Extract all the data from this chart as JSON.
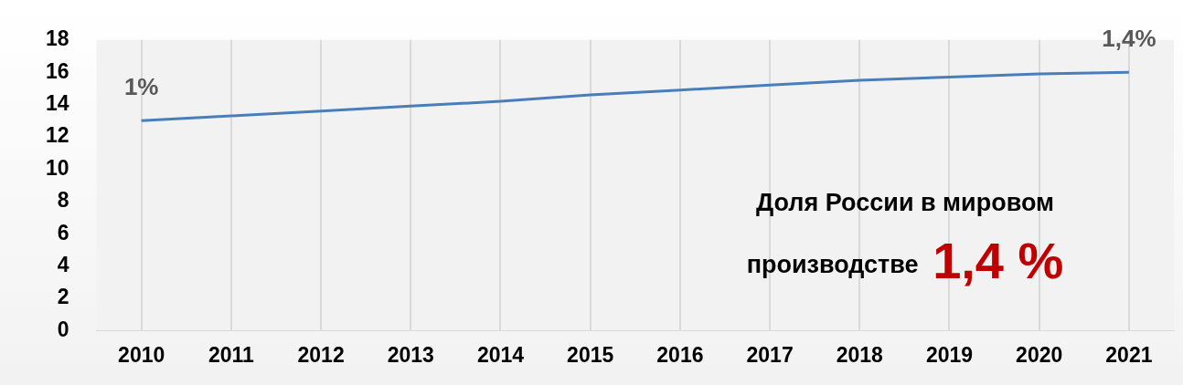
{
  "chart_data": {
    "type": "line",
    "categories": [
      "2010",
      "2011",
      "2012",
      "2013",
      "2014",
      "2015",
      "2016",
      "2017",
      "2018",
      "2019",
      "2020",
      "2021"
    ],
    "series": [
      {
        "color": "#4a7ebb",
        "values": [
          13.0,
          13.3,
          13.6,
          13.9,
          14.2,
          14.6,
          14.9,
          15.2,
          15.5,
          15.7,
          15.9,
          16.0
        ]
      }
    ],
    "ylim": [
      0,
      18
    ],
    "yticks": [
      0,
      2,
      4,
      6,
      8,
      10,
      12,
      14,
      16,
      18
    ],
    "grid": "x",
    "legend": false,
    "marker": "none",
    "line_style": "solid",
    "annotations": [
      {
        "text": "1%",
        "x": "2010",
        "y": 13.0
      },
      {
        "text": "1,4%",
        "x": "2021",
        "y": 16.0
      },
      "Доля России в мировом производстве",
      "1,4 %"
    ]
  }
}
